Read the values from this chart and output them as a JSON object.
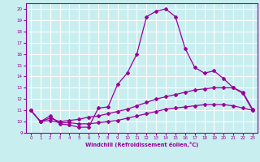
{
  "xlabel": "Windchill (Refroidissement éolien,°C)",
  "bg_color": "#c8eef0",
  "grid_color": "#ffffff",
  "line_color": "#990099",
  "xlim": [
    -0.5,
    23.5
  ],
  "ylim": [
    9,
    20.5
  ],
  "xticks": [
    0,
    1,
    2,
    3,
    4,
    5,
    6,
    7,
    8,
    9,
    10,
    11,
    12,
    13,
    14,
    15,
    16,
    17,
    18,
    19,
    20,
    21,
    22,
    23
  ],
  "yticks": [
    9,
    10,
    11,
    12,
    13,
    14,
    15,
    16,
    17,
    18,
    19,
    20
  ],
  "line1_x": [
    0,
    1,
    2,
    3,
    4,
    5,
    6,
    7,
    8,
    9,
    10,
    11,
    12,
    13,
    14,
    15,
    16,
    17,
    18,
    19,
    20,
    21,
    22,
    23
  ],
  "line1_y": [
    11,
    10,
    10.5,
    9.8,
    9.7,
    9.5,
    9.5,
    11.2,
    11.3,
    13.3,
    14.3,
    16.0,
    19.3,
    19.8,
    20.0,
    19.3,
    16.5,
    14.8,
    14.3,
    14.5,
    13.8,
    13.0,
    12.5,
    11.0
  ],
  "line2_x": [
    0,
    1,
    2,
    3,
    4,
    5,
    6,
    7,
    8,
    9,
    10,
    11,
    12,
    13,
    14,
    15,
    16,
    17,
    18,
    19,
    20,
    21,
    22,
    23
  ],
  "line2_y": [
    11,
    10,
    10.3,
    10.0,
    10.1,
    10.2,
    10.4,
    10.5,
    10.7,
    10.9,
    11.1,
    11.4,
    11.7,
    12.0,
    12.2,
    12.4,
    12.6,
    12.8,
    12.9,
    13.0,
    13.0,
    13.0,
    12.6,
    11.1
  ],
  "line3_x": [
    0,
    1,
    2,
    3,
    4,
    5,
    6,
    7,
    8,
    9,
    10,
    11,
    12,
    13,
    14,
    15,
    16,
    17,
    18,
    19,
    20,
    21,
    22,
    23
  ],
  "line3_y": [
    11,
    10,
    10.1,
    9.9,
    9.9,
    9.8,
    9.8,
    9.9,
    10.0,
    10.1,
    10.3,
    10.5,
    10.7,
    10.9,
    11.1,
    11.2,
    11.3,
    11.4,
    11.5,
    11.5,
    11.5,
    11.4,
    11.2,
    11.0
  ]
}
